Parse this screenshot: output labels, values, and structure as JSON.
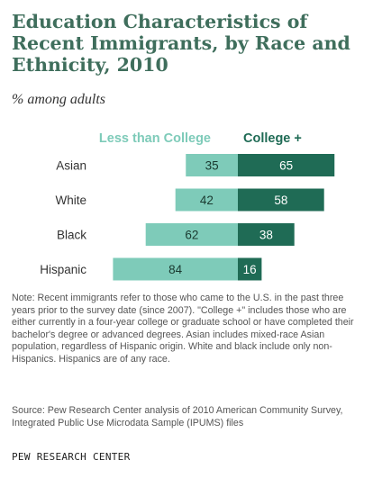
{
  "header": {
    "title": "Education Characteristics of Recent Immigrants, by Race and Ethnicity, 2010",
    "subtitle": "% among adults"
  },
  "chart_data": {
    "type": "bar",
    "orientation": "horizontal-diverging",
    "categories": [
      "Asian",
      "White",
      "Black",
      "Hispanic"
    ],
    "series": [
      {
        "name": "Less than College",
        "values": [
          35,
          42,
          62,
          84
        ],
        "color": "#7ecbb9"
      },
      {
        "name": "College +",
        "values": [
          65,
          58,
          38,
          16
        ],
        "color": "#1f6b55"
      }
    ],
    "xlim": [
      0,
      100
    ],
    "grid": false,
    "legend": "top"
  },
  "footer": {
    "note": "Note: Recent immigrants refer to those who came to the U.S. in the past three years prior to the survey date (since 2007). \"College +\" includes those who are either currently in a four-year college or graduate school or have completed their bachelor's degree or advanced degrees. Asian includes mixed-race Asian population, regardless of Hispanic origin. White and black include only non-Hispanics. Hispanics are of any race.",
    "source": "Source: Pew Research Center analysis of 2010 American Community Survey, Integrated Public Use Microdata Sample (IPUMS) files",
    "brand": "PEW RESEARCH CENTER"
  }
}
